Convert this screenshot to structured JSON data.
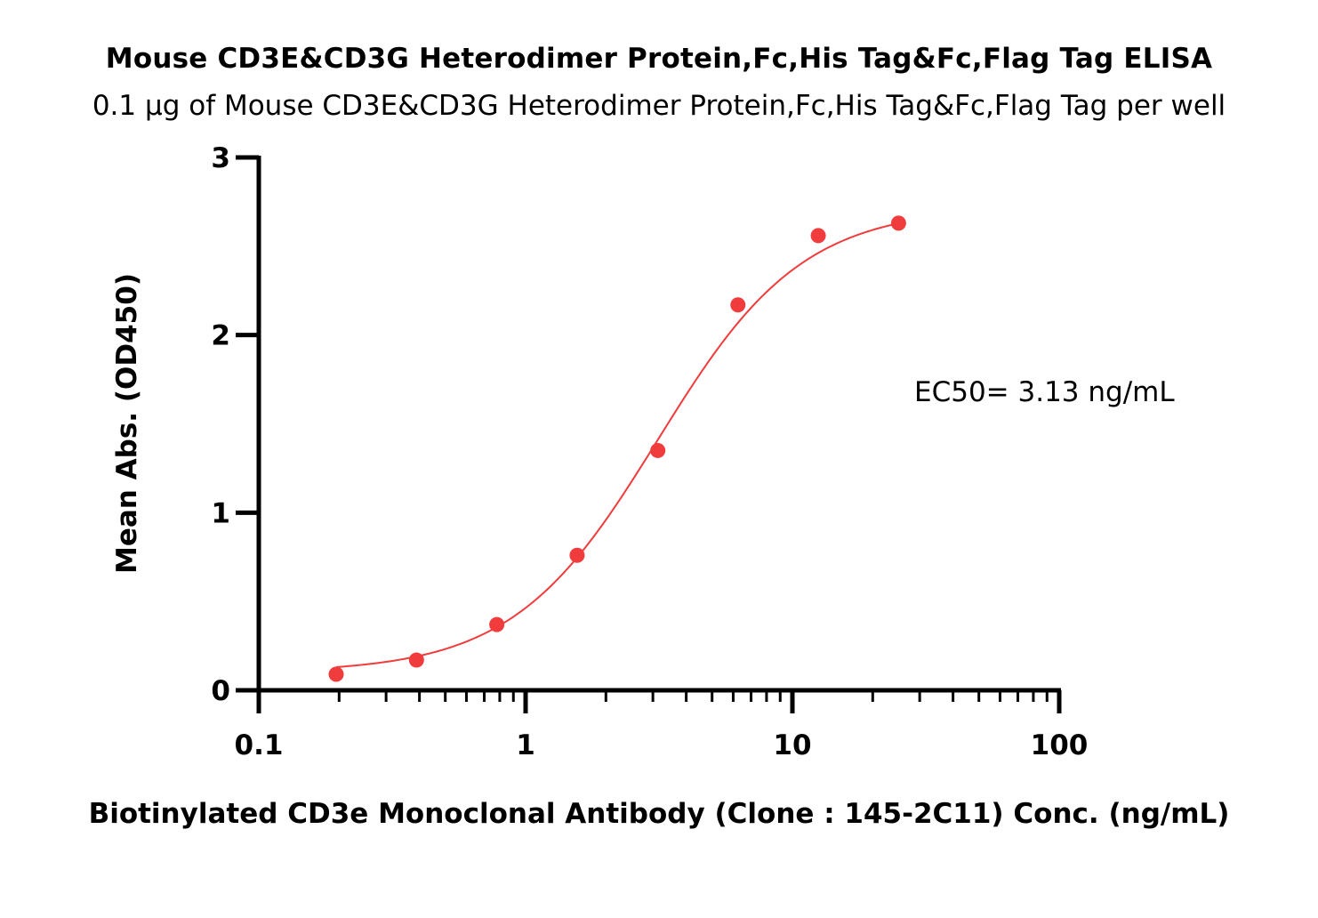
{
  "chart_data": {
    "type": "scatter",
    "title": "Mouse CD3E&CD3G Heterodimer Protein,Fc,His Tag&Fc,Flag Tag ELISA",
    "subtitle": "0.1 µg of Mouse CD3E&CD3G Heterodimer Protein,Fc,His Tag&Fc,Flag Tag per well",
    "xlabel": "Biotinylated CD3e Monoclonal Antibody (Clone : 145-2C11) Conc. (ng/mL)",
    "ylabel": "Mean Abs. (OD450)",
    "x_scale": "log",
    "xlim": [
      0.1,
      100
    ],
    "ylim": [
      0,
      3
    ],
    "x_ticks": [
      0.1,
      1,
      10,
      100
    ],
    "x_tick_labels": [
      "0.1",
      "1",
      "10",
      "100"
    ],
    "y_ticks": [
      0,
      1,
      2,
      3
    ],
    "y_tick_labels": [
      "0",
      "1",
      "2",
      "3"
    ],
    "grid": false,
    "color": "#f03c3c",
    "series": [
      {
        "x": [
          0.195,
          0.39,
          0.78,
          1.56,
          3.13,
          6.25,
          12.5,
          25
        ],
        "y": [
          0.09,
          0.17,
          0.37,
          0.76,
          1.35,
          2.17,
          2.56,
          2.63
        ]
      }
    ],
    "fit": {
      "model": "4PL",
      "bottom": 0.1,
      "top": 2.72,
      "ec50": 3.13,
      "hill": 1.6
    },
    "annotations": [
      {
        "text": "EC50= 3.13 ng/mL"
      }
    ]
  }
}
